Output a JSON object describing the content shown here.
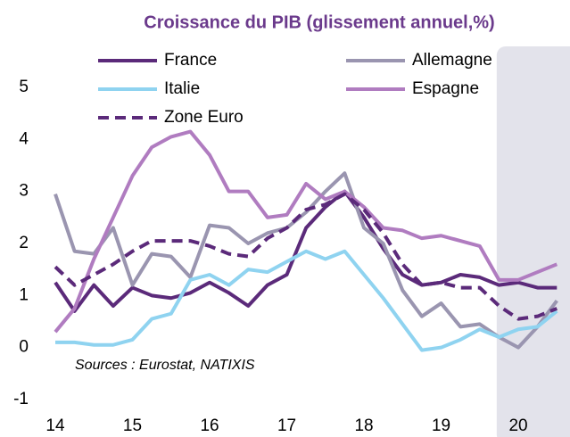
{
  "chart_data": {
    "type": "line",
    "title": "Croissance du PIB  (glissement annuel,%)",
    "annotation": "Sources : Eurostat, NATIXIS",
    "x": [
      14,
      14.25,
      14.5,
      14.75,
      15,
      15.25,
      15.5,
      15.75,
      16,
      16.25,
      16.5,
      16.75,
      17,
      17.25,
      17.5,
      17.75,
      18,
      18.25,
      18.5,
      18.75,
      19,
      19.25,
      19.5,
      19.75,
      20,
      20.25,
      20.5
    ],
    "series": [
      {
        "name": "France",
        "color": "#5b2a7a",
        "dash": false,
        "values": [
          1.25,
          0.7,
          1.2,
          0.8,
          1.15,
          1.0,
          0.95,
          1.05,
          1.25,
          1.05,
          0.8,
          1.2,
          1.4,
          2.3,
          2.7,
          3.0,
          2.5,
          1.9,
          1.4,
          1.2,
          1.25,
          1.4,
          1.35,
          1.2,
          1.25,
          1.15,
          1.15
        ]
      },
      {
        "name": "Allemagne",
        "color": "#9a95b0",
        "dash": false,
        "values": [
          2.95,
          1.85,
          1.8,
          2.3,
          1.2,
          1.8,
          1.75,
          1.35,
          2.35,
          2.3,
          2.0,
          2.2,
          2.3,
          2.6,
          3.0,
          3.35,
          2.3,
          2.0,
          1.1,
          0.6,
          0.85,
          0.4,
          0.45,
          0.2,
          0.0,
          0.4,
          0.9
        ]
      },
      {
        "name": "Italie",
        "color": "#8fd3f0",
        "dash": false,
        "values": [
          0.1,
          0.1,
          0.05,
          0.05,
          0.15,
          0.55,
          0.65,
          1.3,
          1.4,
          1.2,
          1.5,
          1.45,
          1.65,
          1.85,
          1.7,
          1.85,
          1.4,
          0.95,
          0.45,
          -0.05,
          0.0,
          0.15,
          0.35,
          0.2,
          0.35,
          0.4,
          0.7
        ]
      },
      {
        "name": "Espagne",
        "color": "#b07cc0",
        "dash": false,
        "values": [
          0.3,
          0.75,
          1.7,
          2.5,
          3.3,
          3.85,
          4.05,
          4.15,
          3.7,
          3.0,
          3.0,
          2.5,
          2.55,
          3.15,
          2.85,
          3.0,
          2.7,
          2.3,
          2.25,
          2.1,
          2.15,
          2.05,
          1.95,
          1.3,
          1.3,
          1.45,
          1.6
        ]
      },
      {
        "name": "Zone Euro",
        "color": "#5b2a7a",
        "dash": true,
        "values": [
          1.55,
          1.2,
          1.4,
          1.6,
          1.85,
          2.05,
          2.05,
          2.05,
          1.95,
          1.8,
          1.75,
          2.1,
          2.3,
          2.65,
          2.75,
          2.95,
          2.65,
          2.2,
          1.6,
          1.2,
          1.25,
          1.15,
          1.15,
          0.8,
          0.55,
          0.6,
          0.75
        ]
      }
    ],
    "xlim": [
      14,
      20.67
    ],
    "xticks": [
      14,
      15,
      16,
      17,
      18,
      19,
      20
    ],
    "ylim": [
      -1,
      5
    ],
    "yticks": [
      -1,
      0,
      1,
      2,
      3,
      4,
      5
    ],
    "shaded_xlim": [
      19.72,
      20.67
    ],
    "grid": false
  }
}
